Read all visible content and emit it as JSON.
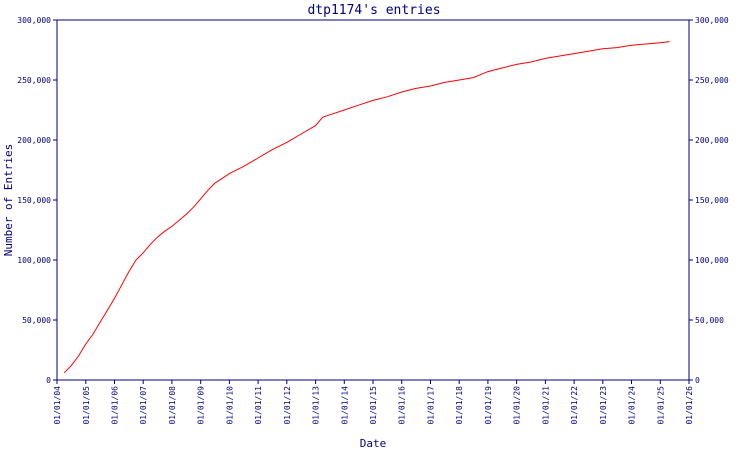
{
  "chart_data": {
    "type": "line",
    "title": "dtp1174's entries",
    "xlabel": "Date",
    "ylabel": "Number of Entries",
    "ylim": [
      0,
      300000
    ],
    "xlim": [
      "2004-01-01",
      "2026-01-01"
    ],
    "y_ticks": [
      0,
      50000,
      100000,
      150000,
      200000,
      250000,
      300000
    ],
    "y_tick_labels": [
      "0",
      "50,000",
      "100,000",
      "150,000",
      "200,000",
      "250,000",
      "300,000"
    ],
    "x_ticks": [
      "2004-01-01",
      "2005-01-01",
      "2006-01-01",
      "2007-01-01",
      "2008-01-01",
      "2009-01-01",
      "2010-01-01",
      "2011-01-01",
      "2012-01-01",
      "2013-01-01",
      "2014-01-01",
      "2015-01-01",
      "2016-01-01",
      "2017-01-01",
      "2018-01-01",
      "2019-01-01",
      "2020-01-01",
      "2021-01-01",
      "2022-01-01",
      "2023-01-01",
      "2024-01-01",
      "2025-01-01",
      "2026-01-01"
    ],
    "x_tick_labels": [
      "01/01/04",
      "01/01/05",
      "01/01/06",
      "01/01/07",
      "01/01/08",
      "01/01/09",
      "01/01/10",
      "01/01/11",
      "01/01/12",
      "01/01/13",
      "01/01/14",
      "01/01/15",
      "01/01/16",
      "01/01/17",
      "01/01/18",
      "01/01/19",
      "01/01/20",
      "01/01/21",
      "01/01/22",
      "01/01/23",
      "01/01/24",
      "01/01/25",
      "01/01/26"
    ],
    "grid": false,
    "colors": {
      "axis": "#000080",
      "series": "#ff0000"
    },
    "series": [
      {
        "x": [
          "2004-04-01",
          "2004-07-01",
          "2004-10-01",
          "2005-01-01",
          "2005-04-01",
          "2005-07-01",
          "2005-10-01",
          "2006-01-01",
          "2006-04-01",
          "2006-07-01",
          "2006-10-01",
          "2007-01-01",
          "2007-04-01",
          "2007-07-01",
          "2007-10-01",
          "2008-01-01",
          "2008-04-01",
          "2008-07-01",
          "2008-10-01",
          "2009-01-01",
          "2009-04-01",
          "2009-07-01",
          "2009-10-01",
          "2010-01-01",
          "2010-07-01",
          "2011-01-01",
          "2011-07-01",
          "2012-01-01",
          "2012-07-01",
          "2013-01-01",
          "2013-04-01",
          "2013-07-01",
          "2014-01-01",
          "2014-07-01",
          "2015-01-01",
          "2015-07-01",
          "2016-01-01",
          "2016-07-01",
          "2017-01-01",
          "2017-07-01",
          "2018-01-01",
          "2018-07-01",
          "2019-01-01",
          "2019-07-01",
          "2020-01-01",
          "2020-07-01",
          "2021-01-01",
          "2021-07-01",
          "2022-01-01",
          "2022-07-01",
          "2023-01-01",
          "2023-07-01",
          "2024-01-01",
          "2024-07-01",
          "2025-01-01",
          "2025-05-01"
        ],
        "values": [
          6000,
          12000,
          20000,
          30000,
          38000,
          48000,
          58000,
          68000,
          79000,
          90000,
          100000,
          106000,
          113000,
          119000,
          124000,
          128000,
          133000,
          138000,
          144000,
          151000,
          158000,
          164000,
          168000,
          172000,
          178000,
          185000,
          192000,
          198000,
          205000,
          212000,
          219000,
          221000,
          225000,
          229000,
          233000,
          236000,
          240000,
          243000,
          245000,
          248000,
          250000,
          252000,
          257000,
          260000,
          263000,
          265000,
          268000,
          270000,
          272000,
          274000,
          276000,
          277000,
          279000,
          280000,
          281000,
          282000
        ]
      }
    ]
  }
}
